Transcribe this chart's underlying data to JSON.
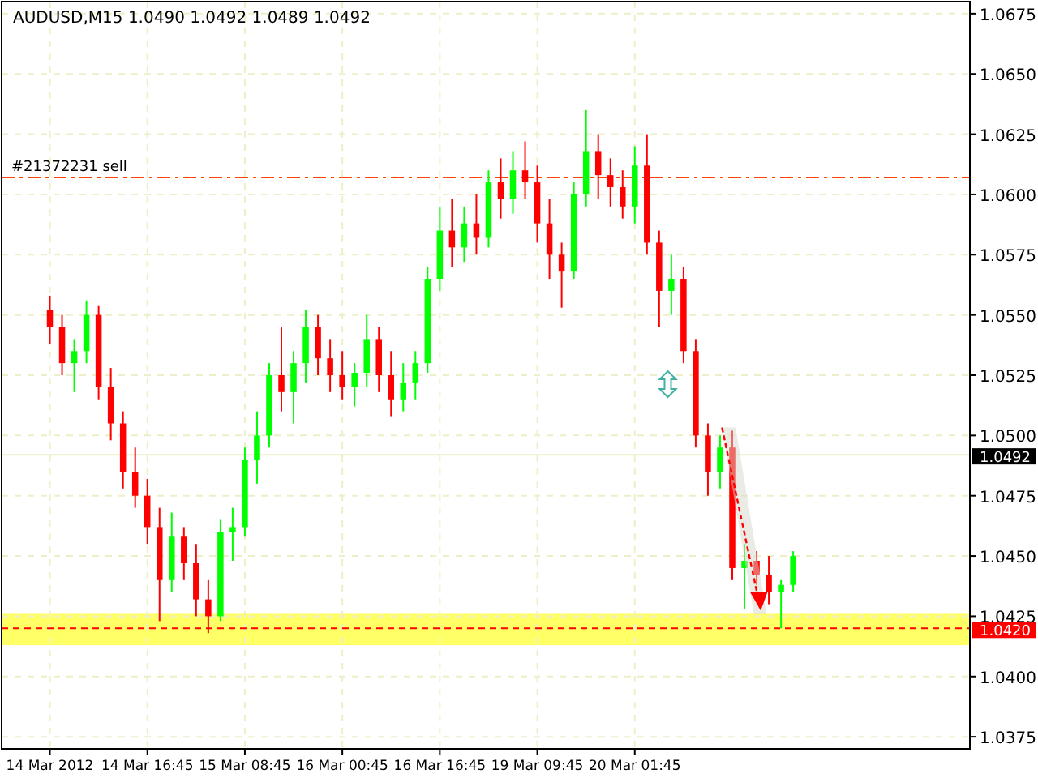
{
  "chart_data": {
    "type": "candlestick",
    "title": "AUDUSD,M15  1.0490 1.0492 1.0489 1.0492",
    "categories": [
      "14 Mar 2012",
      null,
      null,
      null,
      null,
      null,
      null,
      null,
      "14 Mar 16:45",
      null,
      null,
      null,
      null,
      null,
      null,
      null,
      "15 Mar 08:45",
      null,
      null,
      null,
      null,
      null,
      null,
      null,
      "16 Mar 00:45",
      null,
      null,
      null,
      null,
      null,
      null,
      null,
      "16 Mar 16:45",
      null,
      null,
      null,
      null,
      null,
      null,
      null,
      "19 Mar 09:45",
      null,
      null,
      null,
      null,
      null,
      null,
      null,
      "20 Mar 01:45",
      null,
      null,
      null,
      null,
      null,
      null,
      null,
      null,
      null,
      null,
      null,
      null,
      null,
      null,
      null,
      null,
      null,
      null,
      null,
      null,
      null,
      null,
      null,
      null,
      null,
      null,
      null
    ],
    "ohlc": [
      [
        1.0552,
        1.0558,
        1.0538,
        1.0545
      ],
      [
        1.0545,
        1.055,
        1.0525,
        1.053
      ],
      [
        1.053,
        1.054,
        1.0518,
        1.0535
      ],
      [
        1.0535,
        1.0556,
        1.053,
        1.055
      ],
      [
        1.055,
        1.0554,
        1.0515,
        1.052
      ],
      [
        1.052,
        1.0528,
        1.0498,
        1.0505
      ],
      [
        1.0505,
        1.051,
        1.0478,
        1.0485
      ],
      [
        1.0485,
        1.0495,
        1.047,
        1.0475
      ],
      [
        1.0475,
        1.0482,
        1.0455,
        1.0462
      ],
      [
        1.0462,
        1.047,
        1.0423,
        1.044
      ],
      [
        1.044,
        1.0468,
        1.0435,
        1.0458
      ],
      [
        1.0458,
        1.0462,
        1.044,
        1.0447
      ],
      [
        1.0447,
        1.0455,
        1.0425,
        1.0432
      ],
      [
        1.0432,
        1.044,
        1.0418,
        1.0425
      ],
      [
        1.0425,
        1.0465,
        1.0423,
        1.046
      ],
      [
        1.046,
        1.047,
        1.0448,
        1.0462
      ],
      [
        1.0462,
        1.0495,
        1.0458,
        1.049
      ],
      [
        1.049,
        1.051,
        1.048,
        1.05
      ],
      [
        1.05,
        1.053,
        1.0495,
        1.0525
      ],
      [
        1.0525,
        1.0545,
        1.051,
        1.0518
      ],
      [
        1.0518,
        1.0535,
        1.0505,
        1.053
      ],
      [
        1.053,
        1.0552,
        1.0522,
        1.0545
      ],
      [
        1.0545,
        1.055,
        1.0525,
        1.0532
      ],
      [
        1.0532,
        1.054,
        1.0518,
        1.0525
      ],
      [
        1.0525,
        1.0535,
        1.0515,
        1.052
      ],
      [
        1.052,
        1.053,
        1.0512,
        1.0526
      ],
      [
        1.0526,
        1.055,
        1.052,
        1.054
      ],
      [
        1.054,
        1.0545,
        1.0518,
        1.0525
      ],
      [
        1.0525,
        1.0535,
        1.0508,
        1.0515
      ],
      [
        1.0515,
        1.053,
        1.051,
        1.0522
      ],
      [
        1.0522,
        1.0535,
        1.0515,
        1.053
      ],
      [
        1.053,
        1.057,
        1.0526,
        1.0565
      ],
      [
        1.0565,
        1.0595,
        1.056,
        1.0585
      ],
      [
        1.0585,
        1.0598,
        1.057,
        1.0578
      ],
      [
        1.0578,
        1.0595,
        1.0572,
        1.0588
      ],
      [
        1.0588,
        1.06,
        1.0575,
        1.0582
      ],
      [
        1.0582,
        1.061,
        1.0578,
        1.0605
      ],
      [
        1.0605,
        1.0615,
        1.059,
        1.0598
      ],
      [
        1.0598,
        1.0618,
        1.0592,
        1.061
      ],
      [
        1.061,
        1.0622,
        1.0598,
        1.0605
      ],
      [
        1.0605,
        1.0612,
        1.058,
        1.0588
      ],
      [
        1.0588,
        1.0598,
        1.0565,
        1.0575
      ],
      [
        1.0575,
        1.058,
        1.0553,
        1.0568
      ],
      [
        1.0568,
        1.0605,
        1.0565,
        1.06
      ],
      [
        1.06,
        1.0635,
        1.0595,
        1.0618
      ],
      [
        1.0618,
        1.0625,
        1.0598,
        1.0608
      ],
      [
        1.0608,
        1.0615,
        1.0595,
        1.0603
      ],
      [
        1.0603,
        1.061,
        1.059,
        1.0595
      ],
      [
        1.0595,
        1.062,
        1.0588,
        1.0612
      ],
      [
        1.0612,
        1.0625,
        1.0575,
        1.058
      ],
      [
        1.058,
        1.0585,
        1.0545,
        1.056
      ],
      [
        1.056,
        1.0575,
        1.055,
        1.0565
      ],
      [
        1.0565,
        1.057,
        1.053,
        1.0535
      ],
      [
        1.0535,
        1.054,
        1.0495,
        1.05
      ],
      [
        1.05,
        1.0505,
        1.0475,
        1.0485
      ],
      [
        1.0485,
        1.05,
        1.0478,
        1.0495
      ],
      [
        1.0495,
        1.0502,
        1.044,
        1.0445
      ],
      [
        1.0445,
        1.0455,
        1.0428,
        1.0448
      ],
      [
        1.0448,
        1.0452,
        1.0438,
        1.0442
      ],
      [
        1.0442,
        1.045,
        1.043,
        1.0435
      ],
      [
        1.0435,
        1.044,
        1.042,
        1.0438
      ],
      [
        1.0438,
        1.0452,
        1.0435,
        1.045
      ],
      null,
      null,
      null,
      null,
      null,
      null,
      null,
      null,
      null,
      null,
      null,
      null,
      null,
      null
    ],
    "colors": [
      "#ff0000",
      "#ff0000",
      "#00ff00",
      "#00ff00",
      "#ff0000",
      "#ff0000",
      "#ff0000",
      "#ff0000",
      "#ff0000",
      "#ff0000",
      "#00ff00",
      "#ff0000",
      "#ff0000",
      "#ff0000",
      "#00ff00",
      "#00ff00",
      "#00ff00",
      "#00ff00",
      "#00ff00",
      "#ff0000",
      "#00ff00",
      "#00ff00",
      "#ff0000",
      "#ff0000",
      "#ff0000",
      "#00ff00",
      "#00ff00",
      "#ff0000",
      "#ff0000",
      "#00ff00",
      "#00ff00",
      "#00ff00",
      "#00ff00",
      "#ff0000",
      "#00ff00",
      "#ff0000",
      "#00ff00",
      "#ff0000",
      "#00ff00",
      "#ff0000",
      "#ff0000",
      "#ff0000",
      "#ff0000",
      "#00ff00",
      "#00ff00",
      "#ff0000",
      "#ff0000",
      "#ff0000",
      "#00ff00",
      "#ff0000",
      "#ff0000",
      "#00ff00",
      "#ff0000",
      "#ff0000",
      "#ff0000",
      "#00ff00",
      "#ff0000",
      "#00ff00",
      "#ff0000",
      "#ff0000",
      "#00ff00",
      "#00ff00",
      null,
      null,
      null,
      null,
      null,
      null,
      null,
      null,
      null,
      null,
      null,
      null,
      null,
      null
    ],
    "ylim": [
      1.037,
      1.068
    ],
    "yticks": [
      {
        "value": 1.0375,
        "label": "1.0375"
      },
      {
        "value": 1.04,
        "label": "1.0400"
      },
      {
        "value": 1.0425,
        "label": "1.0425"
      },
      {
        "value": 1.045,
        "label": "1.0450"
      },
      {
        "value": 1.0475,
        "label": "1.0475"
      },
      {
        "value": 1.05,
        "label": "1.0500"
      },
      {
        "value": 1.0525,
        "label": "1.0525"
      },
      {
        "value": 1.055,
        "label": "1.0550"
      },
      {
        "value": 1.0575,
        "label": "1.0575"
      },
      {
        "value": 1.06,
        "label": "1.0600"
      },
      {
        "value": 1.0625,
        "label": "1.0625"
      },
      {
        "value": 1.065,
        "label": "1.0650"
      },
      {
        "value": 1.0675,
        "label": "1.0675"
      }
    ],
    "grid": true,
    "bands": [
      {
        "axis": "y",
        "from": 1.0413,
        "to": 1.0426,
        "color": "#ffff66"
      }
    ],
    "ref_lines": [
      {
        "axis": "y",
        "value": 1.0607,
        "label": "#21372231 sell",
        "color": "#ff4500",
        "line_style": "dashdot"
      },
      {
        "axis": "y",
        "value": 1.0492,
        "label": "1.0492",
        "color": "#eeeec8",
        "line_style": "solid"
      },
      {
        "axis": "y",
        "value": 1.042,
        "label": "1.0420",
        "color": "#ff0000",
        "line_style": "dashed"
      }
    ]
  }
}
